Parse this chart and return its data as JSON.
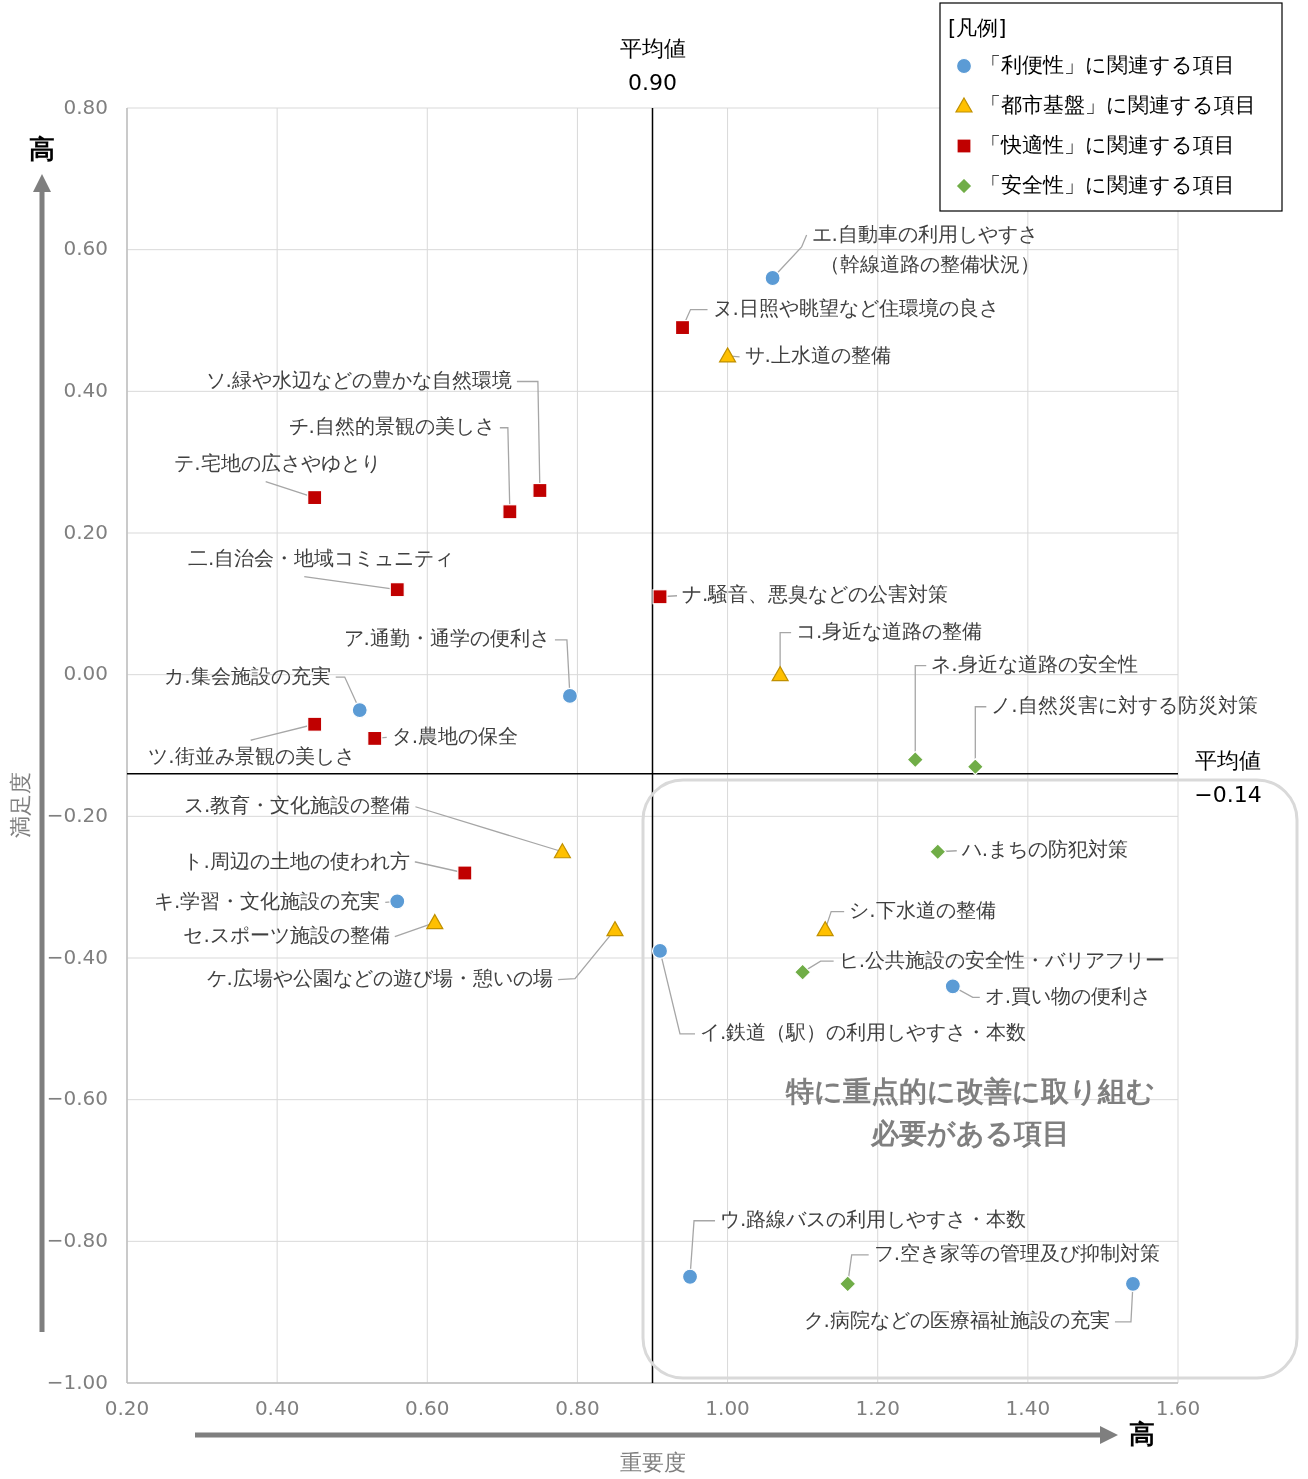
{
  "chart_data": {
    "type": "scatter",
    "xlabel": "重要度",
    "ylabel": "満足度",
    "legend_title": "[凡例]",
    "legend": "top right",
    "grid": true,
    "xlim": [
      0.2,
      1.6
    ],
    "ylim": [
      -1.0,
      0.8
    ],
    "xticks": [
      {
        "value": 0.2,
        "label": "0.20"
      },
      {
        "value": 0.4,
        "label": "0.40"
      },
      {
        "value": 0.6,
        "label": "0.60"
      },
      {
        "value": 0.8,
        "label": "0.80"
      },
      {
        "value": 1.0,
        "label": "1.00"
      },
      {
        "value": 1.2,
        "label": "1.20"
      },
      {
        "value": 1.4,
        "label": "1.40"
      },
      {
        "value": 1.6,
        "label": "1.60"
      }
    ],
    "yticks": [
      {
        "value": 0.8,
        "label": "0.80"
      },
      {
        "value": 0.6,
        "label": "0.60"
      },
      {
        "value": 0.4,
        "label": "0.40"
      },
      {
        "value": 0.2,
        "label": "0.20"
      },
      {
        "value": 0.0,
        "label": "0.00"
      },
      {
        "value": -0.2,
        "label": "−0.20"
      },
      {
        "value": -0.4,
        "label": "−0.40"
      },
      {
        "value": -0.6,
        "label": "−0.60"
      },
      {
        "value": -0.8,
        "label": "−0.80"
      },
      {
        "value": -1.0,
        "label": "−1.00"
      }
    ],
    "series": [
      {
        "name": "「利便性」に関連する項目",
        "color": "#5b9bd5",
        "marker": "circle",
        "x": [
          1.06,
          0.79,
          0.51,
          0.56,
          0.91,
          1.3,
          0.95,
          1.54
        ],
        "values": [
          0.56,
          -0.03,
          -0.05,
          -0.32,
          -0.39,
          -0.44,
          -0.85,
          -0.86
        ]
      },
      {
        "name": "「都市基盤」に関連する項目",
        "color": "#ffc000",
        "marker": "triangle",
        "x": [
          1.0,
          1.07,
          0.78,
          0.61,
          0.85,
          1.13
        ],
        "values": [
          0.45,
          0.0,
          -0.25,
          -0.35,
          -0.36,
          -0.36
        ]
      },
      {
        "name": "「快適性」に関連する項目",
        "color": "#c00000",
        "marker": "square",
        "x": [
          0.94,
          0.45,
          0.71,
          0.75,
          0.56,
          0.91,
          0.45,
          0.53,
          0.65
        ],
        "values": [
          0.49,
          0.25,
          0.23,
          0.26,
          0.12,
          0.11,
          -0.07,
          -0.09,
          -0.28
        ]
      },
      {
        "name": "「安全性」に関連する項目",
        "color": "#70ad47",
        "marker": "diamond",
        "x": [
          1.25,
          1.33,
          1.28,
          1.1,
          1.16
        ],
        "values": [
          -0.12,
          -0.13,
          -0.25,
          -0.42,
          -0.86
        ]
      }
    ],
    "ref_lines": [
      {
        "axis": "x",
        "value": 0.9,
        "label": "平均値"
      },
      {
        "axis": "y",
        "value": -0.14,
        "label": "平均値"
      }
    ],
    "annotations": [
      {
        "text": "エ.自動車の利用しやすさ",
        "x": 1.06,
        "y": 0.56
      },
      {
        "text": "ア.通勤・通学の便利さ",
        "x": 0.79,
        "y": -0.03
      },
      {
        "text": "カ.集会施設の充実",
        "x": 0.51,
        "y": -0.05
      },
      {
        "text": "キ.学習・文化施設の充実",
        "x": 0.56,
        "y": -0.32
      },
      {
        "text": "イ.鉄道（駅）の利用しやすさ・本数",
        "x": 0.91,
        "y": -0.39
      },
      {
        "text": "オ.買い物の便利さ",
        "x": 1.3,
        "y": -0.44
      },
      {
        "text": "ウ.路線バスの利用しやすさ・本数",
        "x": 0.95,
        "y": -0.85
      },
      {
        "text": "ク.病院などの医療福祉施設の充実",
        "x": 1.54,
        "y": -0.86
      },
      {
        "text": "サ.上水道の整備",
        "x": 1.0,
        "y": 0.45
      },
      {
        "text": "コ.身近な道路の整備",
        "x": 1.07,
        "y": 0.0
      },
      {
        "text": "ス.教育・文化施設の整備",
        "x": 0.78,
        "y": -0.25
      },
      {
        "text": "セ.スポーツ施設の整備",
        "x": 0.61,
        "y": -0.35
      },
      {
        "text": "ケ.広場や公園などの遊び場・憩いの場",
        "x": 0.85,
        "y": -0.36
      },
      {
        "text": "シ.下水道の整備",
        "x": 1.13,
        "y": -0.36
      },
      {
        "text": "ヌ.日照や眺望など住環境の良さ",
        "x": 0.94,
        "y": 0.49
      },
      {
        "text": "テ.宅地の広さやゆとり",
        "x": 0.45,
        "y": 0.25
      },
      {
        "text": "チ.自然的景観の美しさ",
        "x": 0.71,
        "y": 0.23
      },
      {
        "text": "ソ.緑や水辺などの豊かな自然環境",
        "x": 0.75,
        "y": 0.26
      },
      {
        "text": "二.自治会・地域コミュニティ",
        "x": 0.56,
        "y": 0.12
      },
      {
        "text": "ナ.騒音、悪臭などの公害対策",
        "x": 0.91,
        "y": 0.11
      },
      {
        "text": "ツ.街並み景観の美しさ",
        "x": 0.45,
        "y": -0.07
      },
      {
        "text": "タ.農地の保全",
        "x": 0.53,
        "y": -0.09
      },
      {
        "text": "ト.周辺の土地の使われ方",
        "x": 0.65,
        "y": -0.28
      },
      {
        "text": "ネ.身近な道路の安全性",
        "x": 1.25,
        "y": -0.12
      },
      {
        "text": "ノ.自然災害に対する防災対策",
        "x": 1.33,
        "y": -0.13
      },
      {
        "text": "ハ.まちの防犯対策",
        "x": 1.28,
        "y": -0.25
      },
      {
        "text": "ヒ.公共施設の安全性・バリアフリー",
        "x": 1.1,
        "y": -0.42
      },
      {
        "text": "フ.空き家等の管理及び抑制対策",
        "x": 1.16,
        "y": -0.86
      },
      "高",
      "高",
      "特に重点的に改善に取り組む",
      "必要がある項目",
      "（幹線道路の整備状況）",
      "0.90",
      "−0.14"
    ]
  }
}
